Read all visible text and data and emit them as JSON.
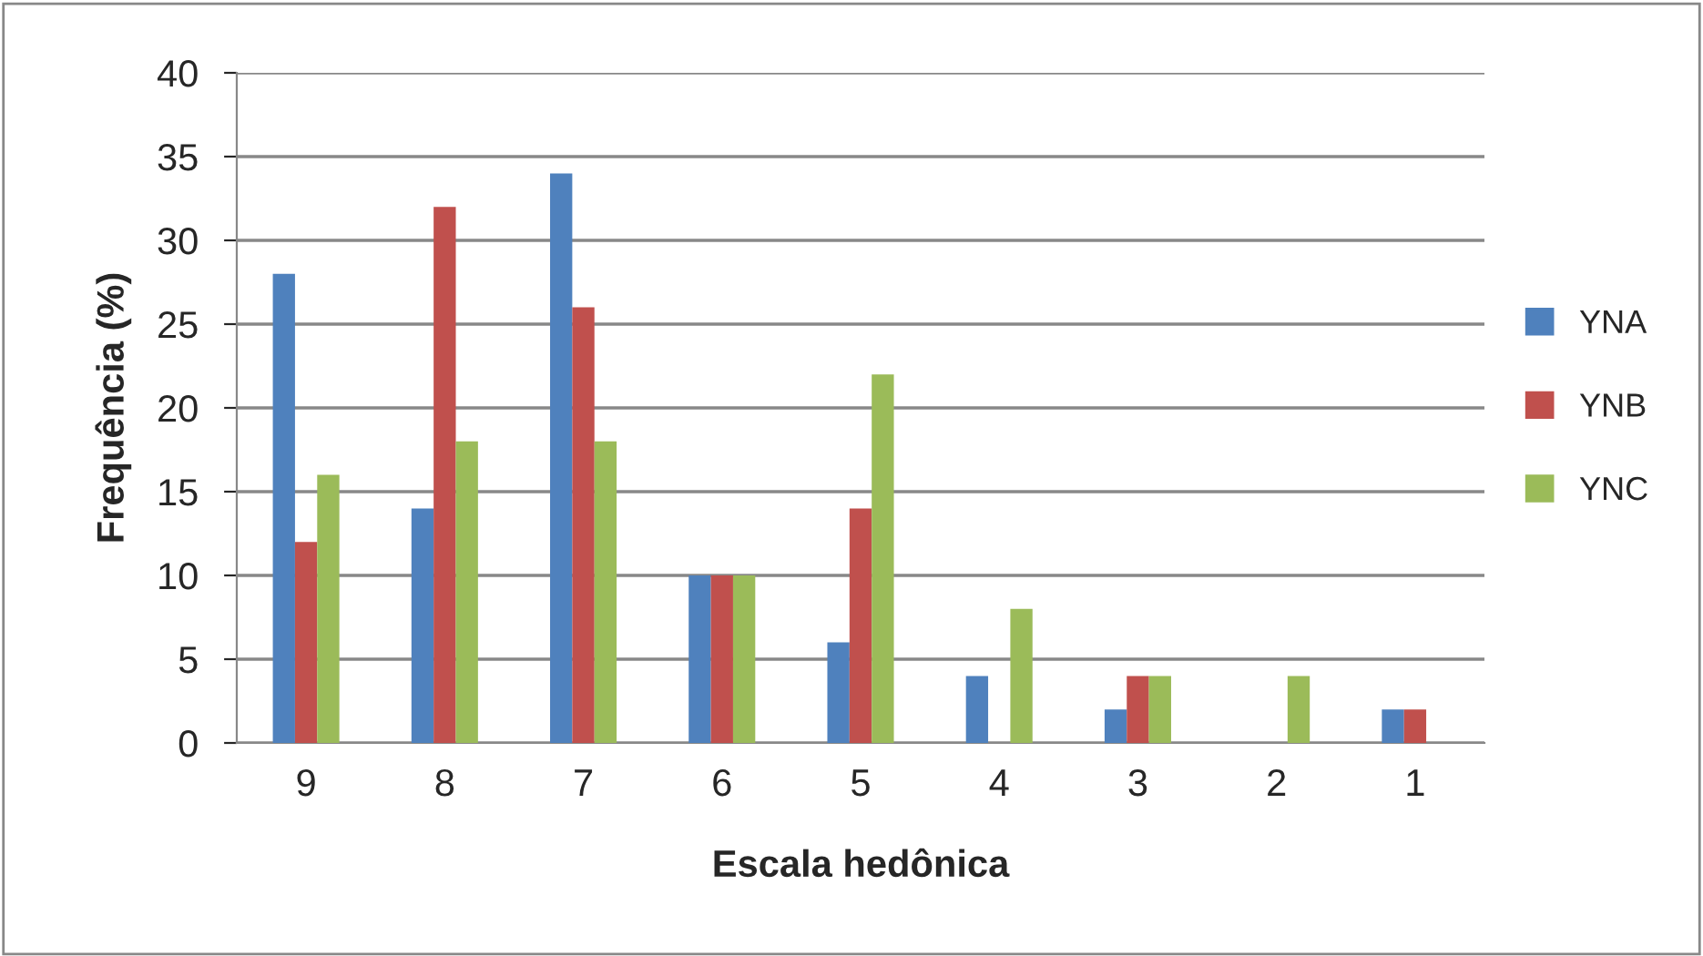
{
  "chart_data": {
    "type": "bar",
    "xlabel": "Escala hedônica",
    "ylabel": "Frequência (%)",
    "categories": [
      "9",
      "8",
      "7",
      "6",
      "5",
      "4",
      "3",
      "2",
      "1"
    ],
    "series": [
      {
        "name": "YNA",
        "color": "#4f81bd",
        "values": [
          28,
          14,
          34,
          10,
          6,
          4,
          2,
          0,
          2
        ]
      },
      {
        "name": "YNB",
        "color": "#c0504d",
        "values": [
          12,
          32,
          26,
          10,
          14,
          0,
          4,
          0,
          2
        ]
      },
      {
        "name": "YNC",
        "color": "#9bbb59",
        "values": [
          16,
          18,
          18,
          10,
          22,
          8,
          4,
          4,
          0
        ]
      }
    ],
    "ylim": [
      0,
      40
    ],
    "yticks": [
      0,
      5,
      10,
      15,
      20,
      25,
      30,
      35,
      40
    ],
    "grid": "y",
    "legend": "right"
  }
}
